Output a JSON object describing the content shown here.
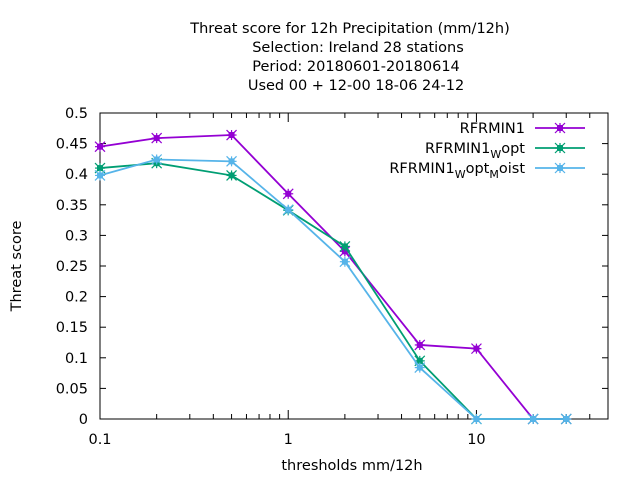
{
  "chart_data": {
    "type": "line",
    "title_lines": [
      "Threat score  for 12h Precipitation (mm/12h)",
      "Selection: Ireland      28 stations",
      "Period: 20180601-20180614",
      "Used  00 + 12-00 18-06 24-12"
    ],
    "xlabel": "thresholds mm/12h",
    "ylabel": "Threat score",
    "x_scale": "log",
    "xlim": [
      0.1,
      50
    ],
    "ylim": [
      0,
      0.5
    ],
    "x_ticks": [
      0.1,
      1,
      10
    ],
    "x_tick_labels": [
      "0.1",
      "1",
      "10"
    ],
    "y_ticks": [
      0,
      0.05,
      0.1,
      0.15,
      0.2,
      0.25,
      0.3,
      0.35,
      0.4,
      0.45,
      0.5
    ],
    "y_tick_labels": [
      "0",
      "0.05",
      "0.1",
      "0.15",
      "0.2",
      "0.25",
      "0.3",
      "0.35",
      "0.4",
      "0.45",
      "0.5"
    ],
    "grid": false,
    "legend_position": "top-right",
    "series": [
      {
        "name": "RFRMIN1",
        "legend_parts": [
          {
            "text": "RFRMIN1",
            "sub": false
          }
        ],
        "color": "#9400d3",
        "x": [
          0.1,
          0.2,
          0.5,
          1,
          2,
          5,
          10,
          20,
          30
        ],
        "y": [
          0.445,
          0.459,
          0.464,
          0.368,
          0.274,
          0.121,
          0.115,
          0.0,
          0.0
        ]
      },
      {
        "name": "RFRMIN1_Wopt",
        "legend_parts": [
          {
            "text": "RFRMIN1",
            "sub": false
          },
          {
            "text": "W",
            "sub": true
          },
          {
            "text": "opt",
            "sub": false
          }
        ],
        "color": "#009e73",
        "x": [
          0.1,
          0.2,
          0.5,
          1,
          2,
          5,
          10,
          20,
          30
        ],
        "y": [
          0.41,
          0.418,
          0.398,
          0.341,
          0.282,
          0.095,
          0.0,
          0.0,
          0.0
        ]
      },
      {
        "name": "RFRMIN1_Wopt_Moist",
        "legend_parts": [
          {
            "text": "RFRMIN1",
            "sub": false
          },
          {
            "text": "W",
            "sub": true
          },
          {
            "text": "opt",
            "sub": false
          },
          {
            "text": "M",
            "sub": true
          },
          {
            "text": "oist",
            "sub": false
          }
        ],
        "color": "#56b4e9",
        "x": [
          0.1,
          0.2,
          0.5,
          1,
          2,
          5,
          10,
          20,
          30
        ],
        "y": [
          0.398,
          0.424,
          0.421,
          0.342,
          0.257,
          0.084,
          0.0,
          0.0,
          0.0
        ]
      }
    ]
  }
}
